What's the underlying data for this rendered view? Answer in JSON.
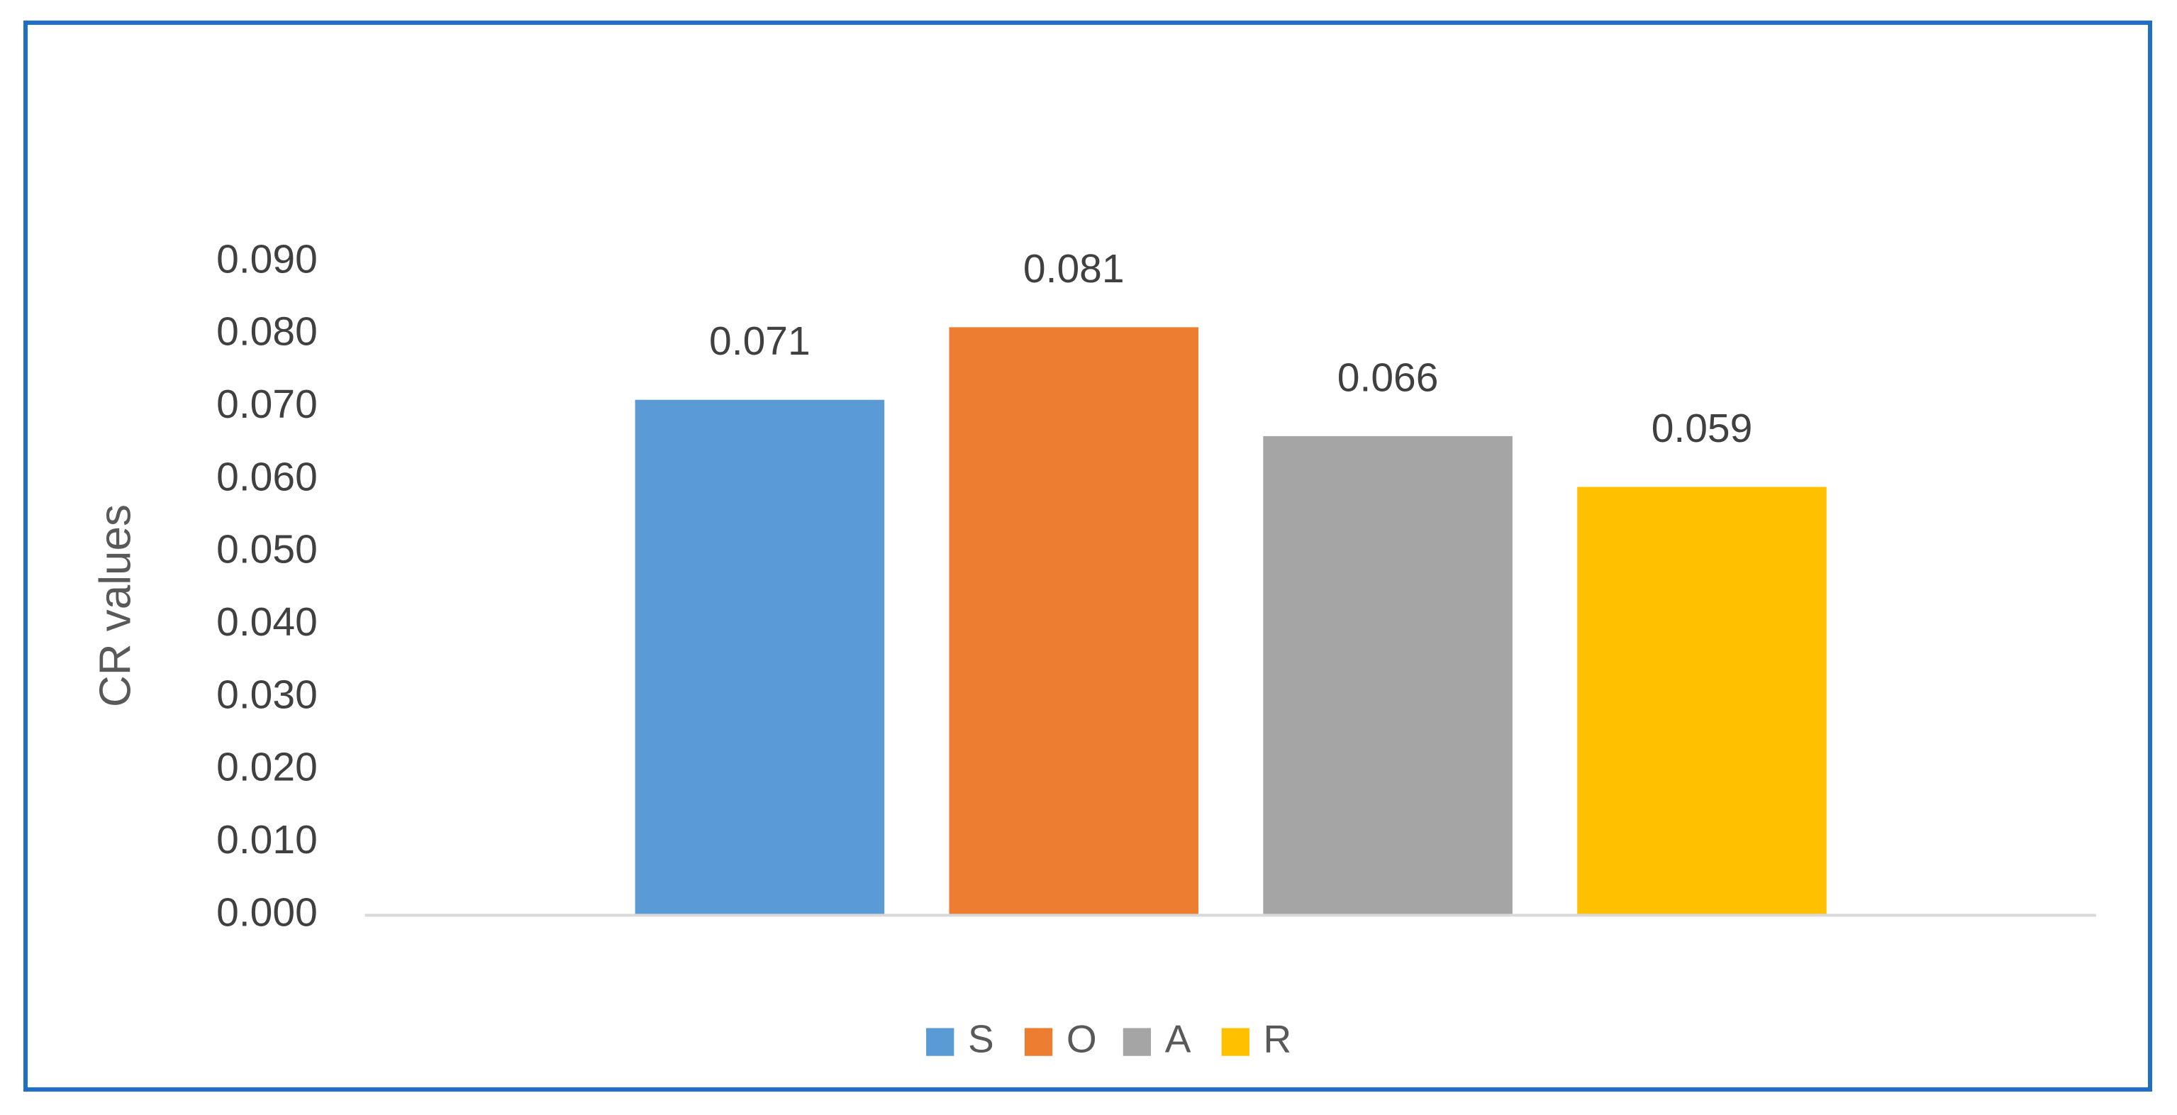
{
  "chart_data": {
    "type": "bar",
    "y_label": "CR values",
    "categories": [
      null
    ],
    "series": [
      {
        "name": "S",
        "color": "#5b9bd5",
        "values": [
          0.071
        ]
      },
      {
        "name": "O",
        "color": "#ed7d31",
        "values": [
          0.081
        ]
      },
      {
        "name": "A",
        "color": "#a5a5a5",
        "values": [
          0.066
        ]
      },
      {
        "name": "R",
        "color": "#ffc000",
        "values": [
          0.059
        ]
      }
    ],
    "ylim": [
      0,
      0.09
    ],
    "yticks": [
      {
        "value": 0,
        "label": "0.000"
      },
      {
        "value": 0.01,
        "label": "0.010"
      },
      {
        "value": 0.02,
        "label": "0.020"
      },
      {
        "value": 0.03,
        "label": "0.030"
      },
      {
        "value": 0.04,
        "label": "0.040"
      },
      {
        "value": 0.05,
        "label": "0.050"
      },
      {
        "value": 0.06,
        "label": "0.060"
      },
      {
        "value": 0.07,
        "label": "0.070"
      },
      {
        "value": 0.08,
        "label": "0.080"
      },
      {
        "value": 0.09,
        "label": "0.090"
      }
    ],
    "grid": false,
    "legend": "bottom"
  }
}
